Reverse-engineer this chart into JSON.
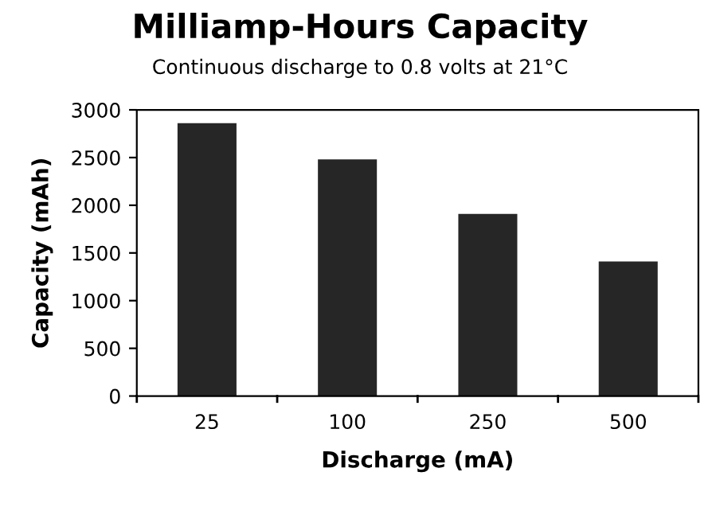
{
  "chart_data": {
    "type": "bar",
    "title": "Milliamp-Hours Capacity",
    "subtitle": "Continuous discharge to 0.8 volts at 21°C",
    "xlabel": "Discharge (mA)",
    "ylabel": "Capacity (mAh)",
    "categories": [
      "25",
      "100",
      "250",
      "500"
    ],
    "values": [
      2860,
      2480,
      1910,
      1410
    ],
    "color": "#262626",
    "ylim": [
      0,
      3000
    ],
    "yticks": [
      0,
      500,
      1000,
      1500,
      2000,
      2500,
      3000
    ],
    "grid": false,
    "legend": false
  }
}
